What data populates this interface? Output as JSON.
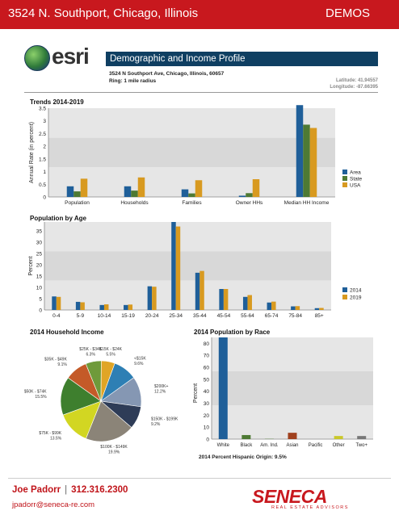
{
  "header": {
    "address": "3524 N. Southport, Chicago, Illinois",
    "label": "DEMOS"
  },
  "logo": {
    "text": "esri"
  },
  "report": {
    "title": "Demographic and Income Profile",
    "location": "3524 N Southport Ave, Chicago, Illinois, 60657",
    "ring": "Ring: 1 mile radius",
    "latitude": "Latitude: 41.94557",
    "longitude": "Longitude: -87.66395"
  },
  "colors": {
    "area": "#1f5f99",
    "state": "#4e7a34",
    "usa": "#d89a20",
    "y2014": "#1f5f99",
    "y2019": "#d89a20",
    "brand_red": "#c8181e",
    "title_bar": "#0f3f62"
  },
  "chart_data": [
    {
      "id": "trends",
      "type": "bar",
      "title": "Trends 2014-2019",
      "ylabel": "Annual Rate (in percent)",
      "ylim": [
        0,
        3.5
      ],
      "yticks": [
        "0",
        "0.5",
        "1",
        "1.5",
        "2",
        "2.5",
        "3",
        "3.5"
      ],
      "categories": [
        "Population",
        "Households",
        "Families",
        "Owner HHs",
        "Median HH Income"
      ],
      "series": [
        {
          "name": "Area",
          "values": [
            0.42,
            0.42,
            0.3,
            0.05,
            3.62
          ]
        },
        {
          "name": "State",
          "values": [
            0.22,
            0.25,
            0.14,
            0.15,
            2.85
          ]
        },
        {
          "name": "USA",
          "values": [
            0.72,
            0.77,
            0.66,
            0.7,
            2.72
          ]
        }
      ],
      "legend": "right"
    },
    {
      "id": "age",
      "type": "bar",
      "title": "Population by Age",
      "ylabel": "Percent",
      "ylim": [
        0,
        39
      ],
      "yticks": [
        "0",
        "5",
        "10",
        "15",
        "20",
        "25",
        "30",
        "35"
      ],
      "categories": [
        "0-4",
        "5-9",
        "10-14",
        "15-19",
        "20-24",
        "25-34",
        "35-44",
        "45-54",
        "55-64",
        "65-74",
        "75-84",
        "85+"
      ],
      "series": [
        {
          "name": "2014",
          "values": [
            6.0,
            3.6,
            2.2,
            2.2,
            10.5,
            39.0,
            16.5,
            9.3,
            5.8,
            3.3,
            1.6,
            0.8
          ]
        },
        {
          "name": "2019",
          "values": [
            5.8,
            3.4,
            2.5,
            2.4,
            10.3,
            37.0,
            17.3,
            9.3,
            6.6,
            3.7,
            1.7,
            0.9
          ]
        }
      ],
      "legend": "right"
    },
    {
      "id": "income",
      "type": "pie",
      "title": "2014 Household Income",
      "slices": [
        {
          "label": "<$15K",
          "value": 9.6,
          "color": "#2e7fb4"
        },
        {
          "label": "$200K+",
          "value": 12.2,
          "color": "#8597b3"
        },
        {
          "label": "$150K - $199K",
          "value": 9.2,
          "color": "#2e3c57"
        },
        {
          "label": "$100K - $149K",
          "value": 19.9,
          "color": "#8b8478"
        },
        {
          "label": "$75K - $99K",
          "value": 13.5,
          "color": "#d2d622"
        },
        {
          "label": "$50K - $74K",
          "value": 15.5,
          "color": "#3e7f2e"
        },
        {
          "label": "$35K - $49K",
          "value": 9.1,
          "color": "#c45a28"
        },
        {
          "label": "$25K - $34K",
          "value": 6.3,
          "color": "#6f9a3a"
        },
        {
          "label": "$15K - $24K",
          "value": 5.5,
          "color": "#e0a526"
        }
      ],
      "display": [
        "9.6%",
        "12.2%",
        "9.2%",
        "19.9%",
        "13.5%",
        "15.5%",
        "9.1%",
        "6.3%",
        "5.5%"
      ]
    },
    {
      "id": "race",
      "type": "bar",
      "title": "2014 Population by Race",
      "ylabel": "Percent",
      "ylim": [
        0,
        85
      ],
      "yticks": [
        "0",
        "10",
        "20",
        "30",
        "40",
        "50",
        "60",
        "70",
        "80"
      ],
      "categories": [
        "White",
        "Black",
        "Am. Ind.",
        "Asian",
        "Pacific",
        "Other",
        "Two+"
      ],
      "values": [
        85.5,
        3.4,
        0.2,
        5.3,
        0.0,
        2.6,
        2.6
      ],
      "colors": [
        "#1f5f99",
        "#4e7a34",
        "#4e7a34",
        "#a0411f",
        "#777777",
        "#c9c82a",
        "#777777"
      ],
      "note": "2014 Percent Hispanic Origin: 9.5%"
    }
  ],
  "footer": {
    "agent_name": "Joe Padorr",
    "phone": "312.316.2300",
    "email": "jpadorr@seneca-re.com",
    "brand": "SENECA",
    "brand_sub": "REAL ESTATE ADVISORS"
  }
}
